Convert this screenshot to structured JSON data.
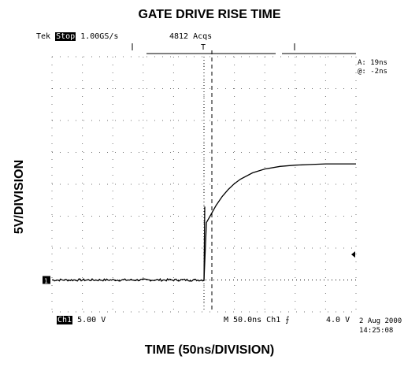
{
  "chart_data": {
    "type": "line",
    "title": "GATE DRIVE RISE TIME",
    "xlabel": "TIME (50ns/DIVISION)",
    "ylabel": "5V/DIVISION",
    "grid": "dotted",
    "x_divisions": 10,
    "y_divisions": 8,
    "x_unit": "ns",
    "y_unit": "V",
    "xlim": [
      -250,
      250
    ],
    "ylim": [
      -5,
      35
    ],
    "series": [
      {
        "x": [
          -250,
          -200,
          -150,
          -100,
          -50,
          0,
          4,
          10,
          20,
          30,
          40,
          50,
          60,
          80,
          100,
          125,
          150,
          175,
          200,
          250
        ],
        "y": [
          0,
          0,
          0,
          0,
          0,
          0,
          9,
          10,
          11.7,
          13.1,
          14.2,
          15.1,
          15.8,
          16.8,
          17.4,
          17.8,
          18.0,
          18.1,
          18.2,
          18.2
        ]
      }
    ]
  },
  "scope": {
    "brand": "Tek",
    "mode": "Stop",
    "sample_rate": "1.00GS/s",
    "acquisitions": "4812 Acqs",
    "trigger_marker": "T",
    "cursor_a": "A: 19ns",
    "cursor_delta": "@: -2ns",
    "channel_marker": "1",
    "channel_label": "Ch1",
    "volts_per_div": "5.00 V",
    "timebase": "M 50.0ns Ch1",
    "trigger_slope": "⨍",
    "trigger_level": "4.0 V",
    "date": "2 Aug 2000",
    "time": "14:25:08"
  },
  "colors": {
    "trace": "#000000",
    "grid": "#000000",
    "background": "#ffffff"
  }
}
